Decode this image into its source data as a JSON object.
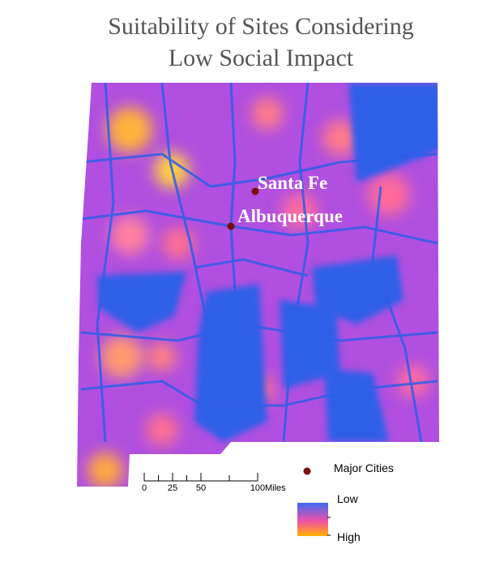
{
  "title": [
    "Suitability of Sites Considering",
    "Low Social Impact"
  ],
  "cities": [
    {
      "label": "Santa Fe"
    },
    {
      "label": "Albuquerque"
    }
  ],
  "legend": {
    "cities": "Major Cities",
    "low": "Low",
    "high": "High"
  },
  "scale_bar": {
    "ticks": [
      0,
      25,
      50,
      100
    ],
    "unit": "Miles"
  }
}
